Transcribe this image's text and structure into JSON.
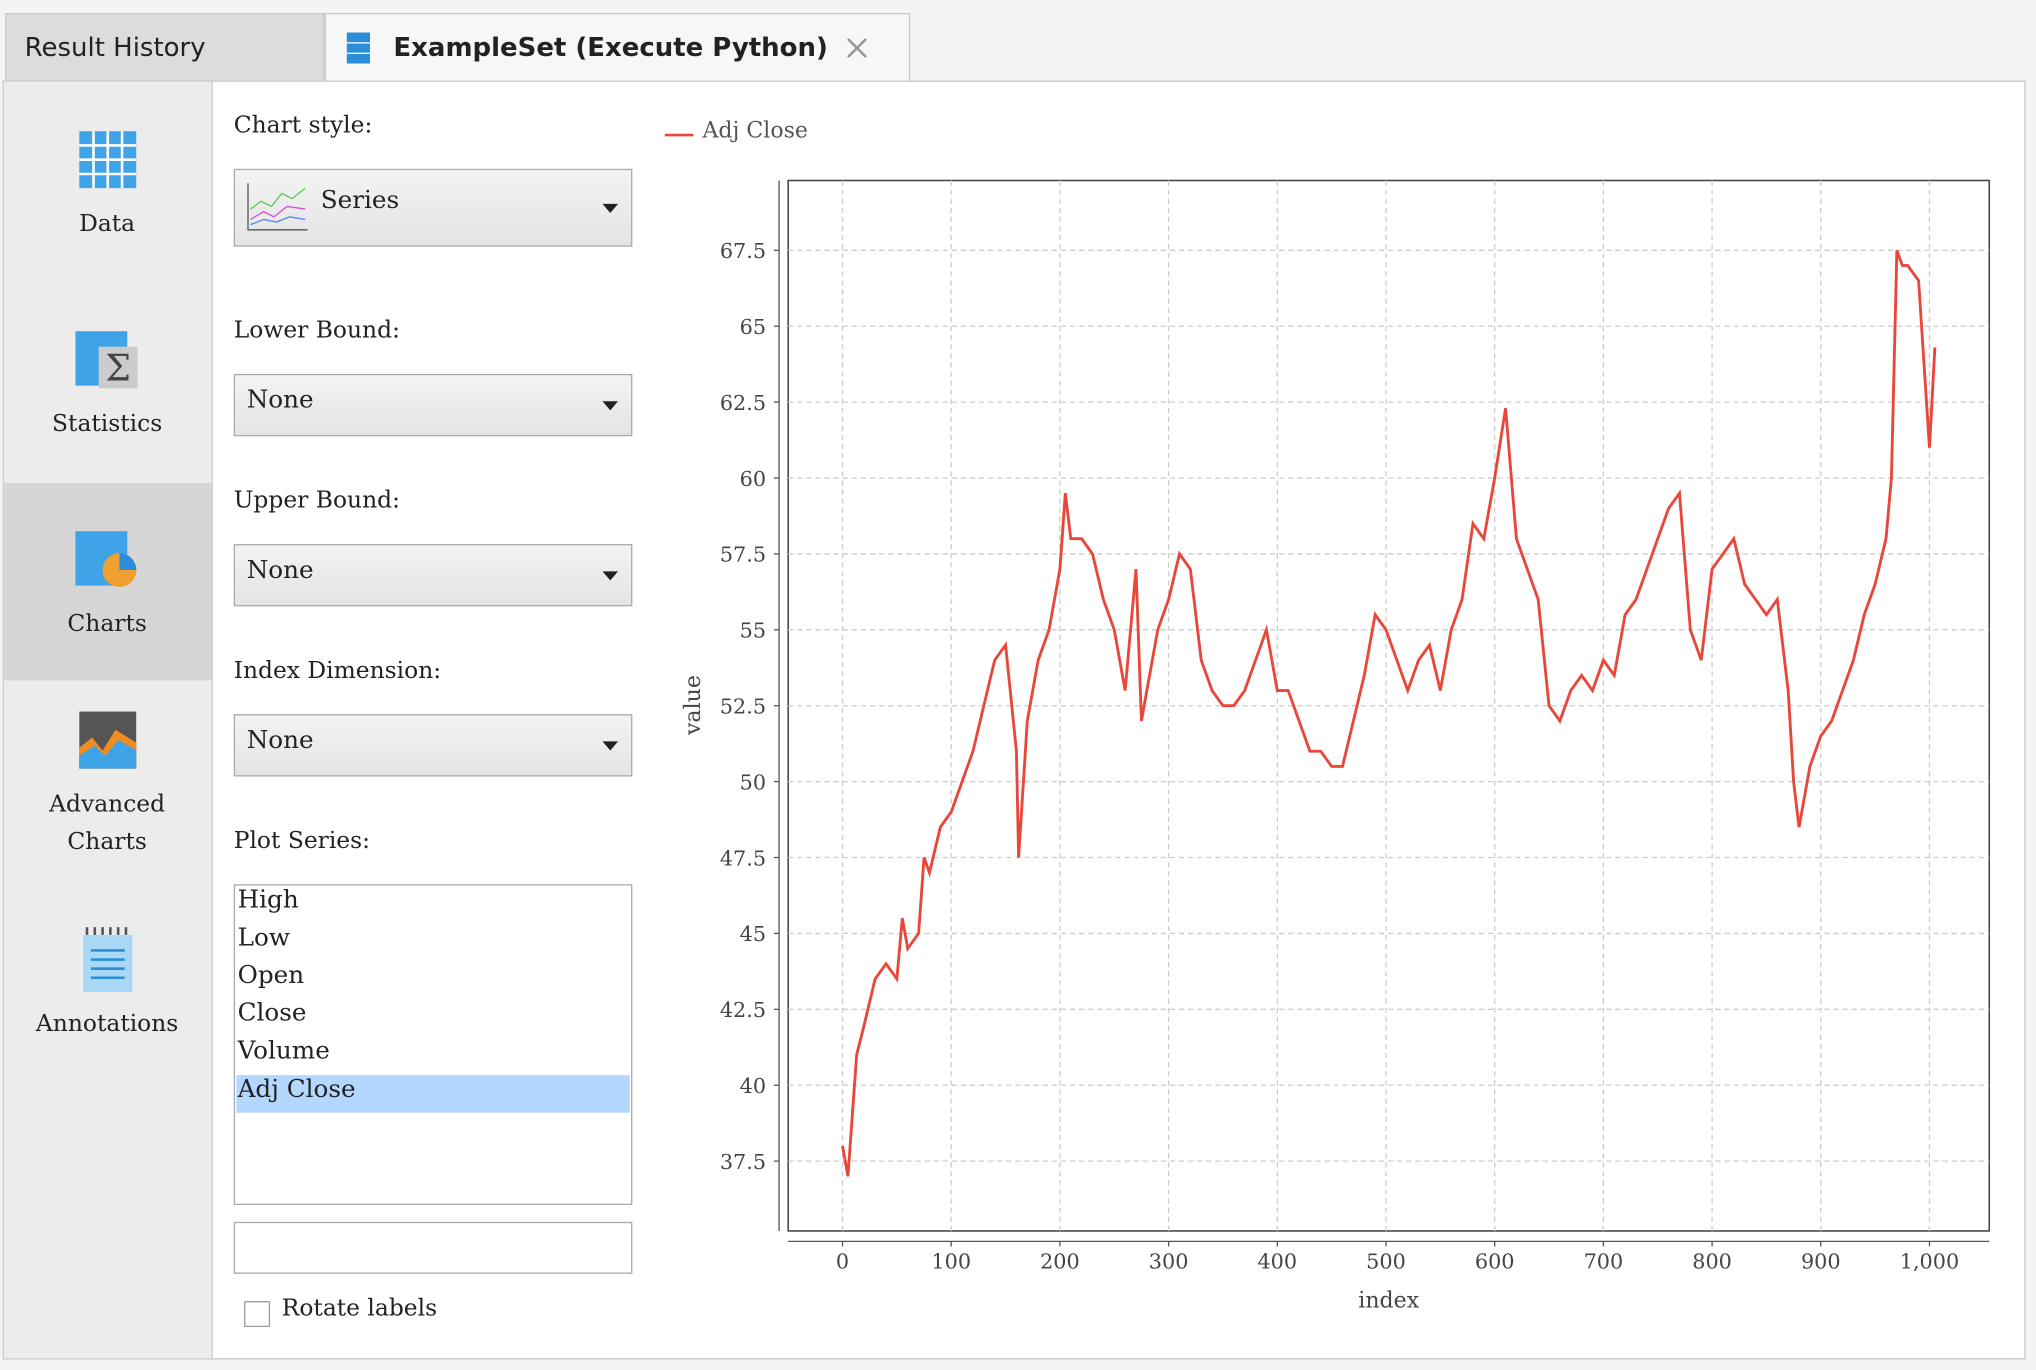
{
  "tabs": [
    "Result History",
    "ExampleSet (Execute Python)"
  ],
  "sidebar": [
    "Data",
    "Statistics",
    "Charts",
    "Advanced Charts",
    "Annotations"
  ],
  "controls": {
    "chart_style_label": "Chart style:",
    "chart_style": "Series",
    "lower_bound_label": "Lower Bound:",
    "lower_bound": "None",
    "upper_bound_label": "Upper Bound:",
    "upper_bound": "None",
    "index_dimension_label": "Index Dimension:",
    "index_dimension": "None",
    "plot_series_label": "Plot Series:",
    "plot_series": [
      "High",
      "Low",
      "Open",
      "Close",
      "Volume",
      "Adj Close"
    ],
    "rotate_labels": "Rotate labels"
  },
  "chart_data": {
    "type": "line",
    "x_label": "index",
    "y_label": "value",
    "grid": true,
    "x": [
      0,
      5,
      13,
      20,
      30,
      40,
      50,
      55,
      60,
      70,
      75,
      80,
      90,
      100,
      110,
      120,
      130,
      140,
      150,
      160,
      162,
      170,
      180,
      190,
      200,
      205,
      210,
      220,
      230,
      240,
      250,
      260,
      270,
      275,
      280,
      290,
      300,
      310,
      320,
      330,
      340,
      350,
      360,
      370,
      380,
      390,
      400,
      410,
      420,
      430,
      440,
      450,
      460,
      470,
      480,
      490,
      500,
      510,
      520,
      530,
      540,
      550,
      560,
      570,
      580,
      590,
      600,
      610,
      620,
      630,
      640,
      650,
      660,
      670,
      680,
      690,
      700,
      710,
      720,
      730,
      740,
      750,
      760,
      770,
      780,
      790,
      800,
      810,
      820,
      830,
      840,
      850,
      860,
      870,
      875,
      880,
      890,
      900,
      910,
      920,
      930,
      940,
      950,
      960,
      965,
      970,
      975,
      980,
      990,
      1000,
      1005
    ],
    "series": [
      {
        "name": "Adj Close",
        "color": "#e8473a",
        "values": [
          38,
          37,
          41,
          42,
          43.5,
          44,
          43.5,
          45.5,
          44.5,
          45,
          47.5,
          47,
          48.5,
          49,
          50,
          51,
          52.5,
          54,
          54.5,
          51,
          47.5,
          52,
          54,
          55,
          57,
          59.5,
          58,
          58,
          57.5,
          56,
          55,
          53,
          57,
          52,
          53,
          55,
          56,
          57.5,
          57,
          54,
          53,
          52.5,
          52.5,
          53,
          54,
          55,
          53,
          53,
          52,
          51,
          51,
          50.5,
          50.5,
          52,
          53.5,
          55.5,
          55,
          54,
          53,
          54,
          54.5,
          53,
          55,
          56,
          58.5,
          58,
          60,
          62.3,
          58,
          57,
          56,
          52.5,
          52,
          53,
          53.5,
          53,
          54,
          53.5,
          55.5,
          56,
          57,
          58,
          59,
          59.5,
          55,
          54,
          57,
          57.5,
          58,
          56.5,
          56,
          55.5,
          56,
          53,
          50,
          48.5,
          50.5,
          51.5,
          52,
          53,
          54,
          55.5,
          56.5,
          58,
          60,
          67.5,
          67,
          67,
          66.5,
          61,
          64.3
        ]
      }
    ],
    "xlim": [
      -50,
      1055
    ],
    "ylim": [
      35.2,
      69.8
    ],
    "xticks": [
      0,
      100,
      200,
      300,
      400,
      500,
      600,
      700,
      800,
      900,
      {
        "value": 1000,
        "label": "1,000"
      }
    ],
    "yticks": [
      37.5,
      40,
      42.5,
      45,
      47.5,
      50,
      52.5,
      55,
      57.5,
      60,
      62.5,
      65,
      67.5
    ]
  }
}
